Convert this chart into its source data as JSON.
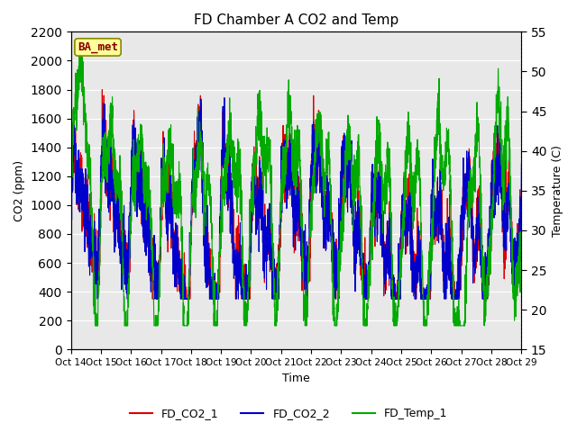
{
  "title": "FD Chamber A CO2 and Temp",
  "xlabel": "Time",
  "ylabel_left": "CO2 (ppm)",
  "ylabel_right": "Temperature (C)",
  "annotation": "BA_met",
  "x_labels": [
    "Oct 14",
    "Oct 15",
    "Oct 16",
    "Oct 17",
    "Oct 18",
    "Oct 19",
    "Oct 20",
    "Oct 21",
    "Oct 22",
    "Oct 23",
    "Oct 24",
    "Oct 25",
    "Oct 26",
    "Oct 27",
    "Oct 28",
    "Oct 29"
  ],
  "ylim_left": [
    0,
    2200
  ],
  "ylim_right": [
    15,
    55
  ],
  "yticks_left": [
    0,
    200,
    400,
    600,
    800,
    1000,
    1200,
    1400,
    1600,
    1800,
    2000,
    2200
  ],
  "yticks_right": [
    15,
    20,
    25,
    30,
    35,
    40,
    45,
    50,
    55
  ],
  "color_co2_1": "#dd0000",
  "color_co2_2": "#0000cc",
  "color_temp": "#00aa00",
  "legend_labels": [
    "FD_CO2_1",
    "FD_CO2_2",
    "FD_Temp_1"
  ],
  "background_color": "#ffffff",
  "plot_bg_color": "#e8e8e8",
  "grid_color": "#ffffff",
  "annotation_bg": "#ffff99",
  "annotation_border": "#888800",
  "annotation_text_color": "#880000",
  "linewidth": 0.8,
  "n_points": 3000
}
